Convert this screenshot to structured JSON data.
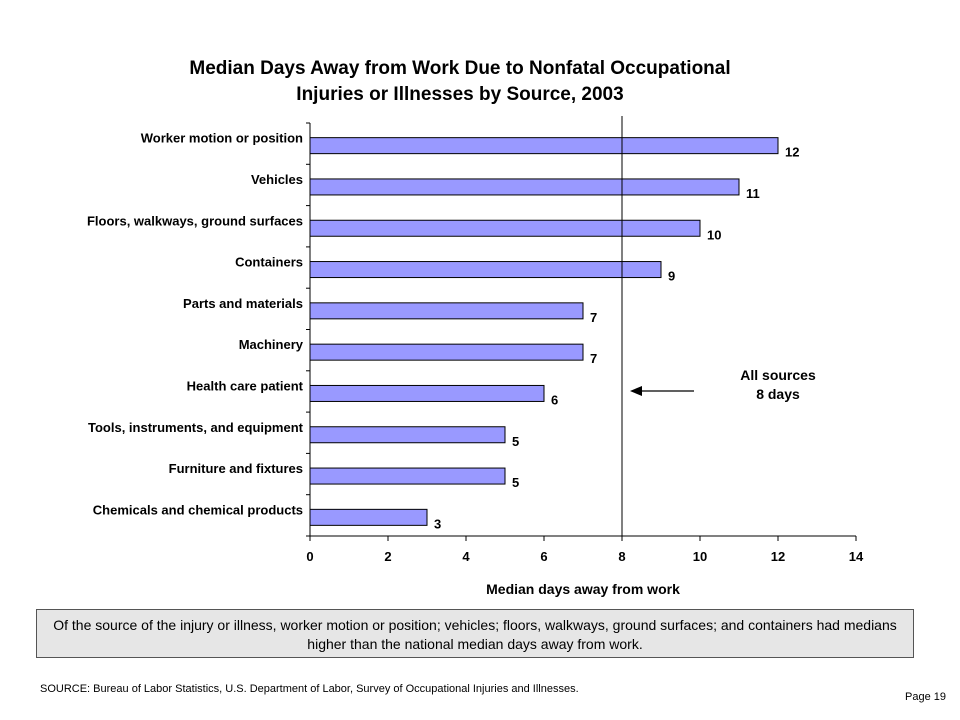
{
  "chart_data": {
    "type": "bar",
    "orientation": "horizontal",
    "title_line1": "Median Days Away from Work Due to Nonfatal Occupational",
    "title_line2": "Injuries or Illnesses by Source, 2003",
    "categories": [
      "Worker motion or position",
      "Vehicles",
      "Floors, walkways, ground surfaces",
      "Containers",
      "Parts and materials",
      "Machinery",
      "Health care patient",
      "Tools, instruments, and equipment",
      "Furniture and fixtures",
      "Chemicals and chemical products"
    ],
    "values": [
      12,
      11,
      10,
      9,
      7,
      7,
      6,
      5,
      5,
      3
    ],
    "xlabel": "Median days away from work",
    "xlim": [
      0,
      14
    ],
    "xticks": [
      0,
      2,
      4,
      6,
      8,
      10,
      12,
      14
    ],
    "reference_line": 8,
    "annotation_line1": "All sources",
    "annotation_line2": "8 days",
    "bar_color": "#9999ff",
    "grid": false
  },
  "note": "Of the source of the injury or illness, worker motion or position; vehicles; floors, walkways, ground surfaces; and containers had medians higher than the national median days away from work.",
  "source": "SOURCE:   Bureau of Labor Statistics, U.S. Department of Labor, Survey of Occupational Injuries and Illnesses.",
  "page": "Page 19"
}
